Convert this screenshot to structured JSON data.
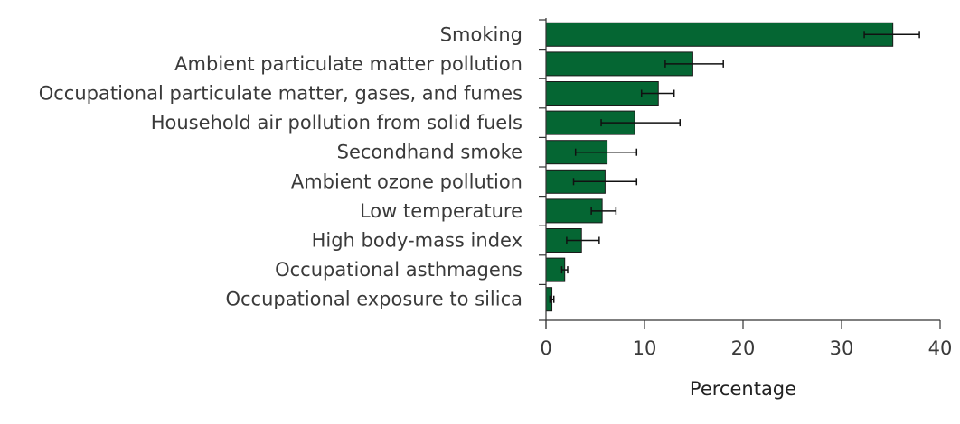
{
  "chart_data": {
    "type": "bar",
    "orientation": "horizontal",
    "categories": [
      "Smoking",
      "Ambient particulate matter pollution",
      "Occupational particulate matter, gases, and fumes",
      "Household air pollution from solid fuels",
      "Secondhand smoke",
      "Ambient ozone pollution",
      "Low temperature",
      "High body-mass index",
      "Occupational asthmagens",
      "Occupational exposure to silica"
    ],
    "values": [
      35.2,
      14.9,
      11.4,
      9.0,
      6.2,
      6.0,
      5.7,
      3.6,
      1.9,
      0.6
    ],
    "error_lower": [
      32.3,
      12.1,
      9.7,
      5.6,
      3.0,
      2.8,
      4.6,
      2.1,
      1.6,
      0.4
    ],
    "error_upper": [
      37.9,
      18.0,
      13.0,
      13.6,
      9.2,
      9.2,
      7.1,
      5.4,
      2.2,
      0.8
    ],
    "xlabel": "Percentage",
    "ylabel": "",
    "title": "",
    "xlim": [
      0,
      40
    ],
    "xticks": [
      0,
      10,
      20,
      30,
      40
    ],
    "grid": false,
    "bar_color": "#056633",
    "error_bar_color": "#111111",
    "axis_color": "#333333"
  }
}
